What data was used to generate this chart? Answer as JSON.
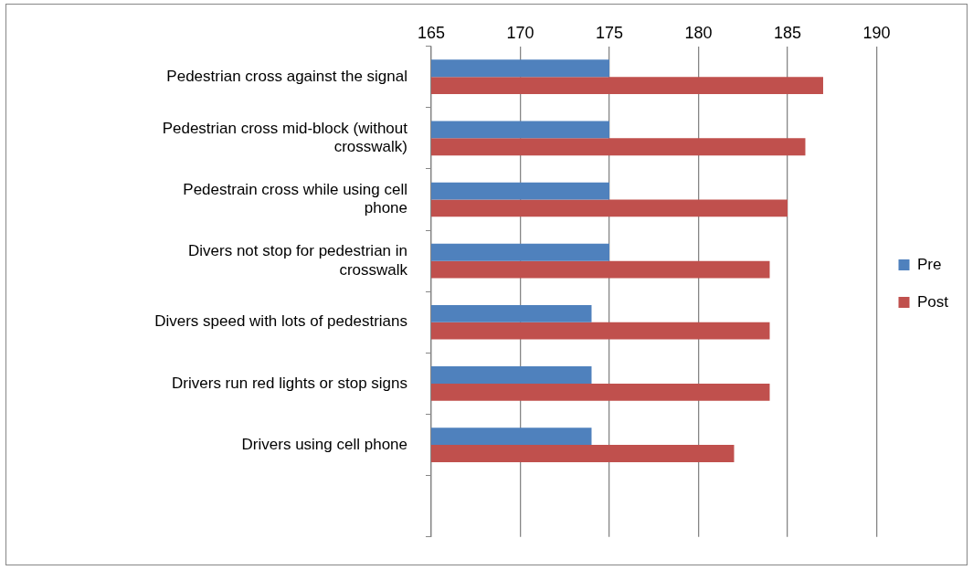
{
  "chart_data": {
    "type": "bar",
    "orientation": "horizontal",
    "categories": [
      "Pedestrian cross against the signal",
      "Pedestrian cross mid-block (without crosswalk)",
      "Pedestrain cross while using cell phone",
      "Divers not stop for pedestrian in crosswalk",
      "Divers speed with lots of pedestrians",
      "Drivers run red lights or stop signs",
      "Drivers using cell phone",
      null
    ],
    "series": [
      {
        "name": "Pre",
        "color": "#4f81bd",
        "values": [
          175,
          175,
          175,
          175,
          174,
          174,
          174,
          null
        ]
      },
      {
        "name": "Post",
        "color": "#c0504d",
        "values": [
          187,
          186,
          185,
          184,
          184,
          184,
          182,
          null
        ]
      }
    ],
    "xlim": [
      165,
      190
    ],
    "xticks": [
      165,
      170,
      175,
      180,
      185,
      190
    ],
    "grid": "x",
    "legend": "right"
  }
}
